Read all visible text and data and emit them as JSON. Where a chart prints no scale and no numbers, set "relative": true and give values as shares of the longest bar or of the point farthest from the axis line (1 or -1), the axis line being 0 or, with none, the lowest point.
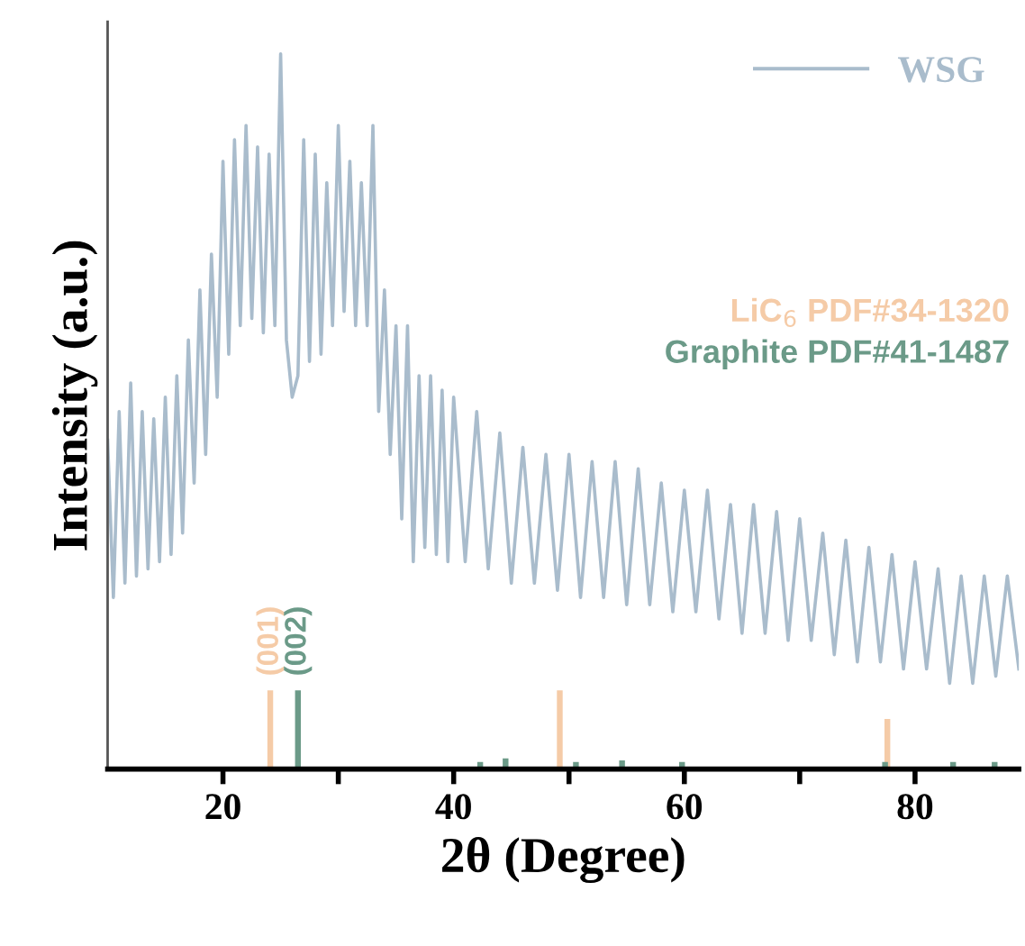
{
  "chart_data": {
    "type": "line",
    "relative": true,
    "xlabel": "2θ (Degree)",
    "ylabel": "Intensity (a.u.)",
    "xlim": [
      10,
      89
    ],
    "xticks": [
      20,
      {
        "value": 30,
        "label": null
      },
      40,
      {
        "value": 50,
        "label": null
      },
      60,
      {
        "value": 70,
        "label": null
      },
      80
    ],
    "tick_labels": "x",
    "legend": "top right",
    "grid": false,
    "series": [
      {
        "name": "WSG",
        "color": "#a9bccc",
        "x": [
          10,
          10.5,
          11,
          11.5,
          12,
          12.5,
          13,
          13.5,
          14,
          14.5,
          15,
          15.5,
          16,
          16.5,
          17,
          17.5,
          18,
          18.5,
          19,
          19.5,
          20,
          20.5,
          21,
          21.5,
          22,
          22.5,
          23,
          23.5,
          24,
          24.5,
          25,
          25.5,
          26,
          26.5,
          27,
          27.5,
          28,
          28.5,
          29,
          29.5,
          30,
          30.5,
          31,
          31.5,
          32,
          32.5,
          33,
          33.5,
          34,
          34.5,
          35,
          35.5,
          36,
          36.5,
          37,
          37.5,
          38,
          38.5,
          39,
          39.5,
          40,
          41,
          42,
          43,
          44,
          45,
          46,
          47,
          48,
          49,
          50,
          51,
          52,
          53,
          54,
          55,
          56,
          57,
          58,
          59,
          60,
          61,
          62,
          63,
          64,
          65,
          66,
          67,
          68,
          69,
          70,
          71,
          72,
          73,
          74,
          75,
          76,
          77,
          78,
          79,
          80,
          81,
          82,
          83,
          84,
          85,
          86,
          87,
          88,
          89
        ],
        "values": [
          0.46,
          0.24,
          0.5,
          0.26,
          0.54,
          0.27,
          0.5,
          0.28,
          0.49,
          0.29,
          0.52,
          0.3,
          0.55,
          0.33,
          0.6,
          0.4,
          0.67,
          0.44,
          0.72,
          0.52,
          0.85,
          0.58,
          0.88,
          0.62,
          0.9,
          0.63,
          0.87,
          0.61,
          0.86,
          0.62,
          1.0,
          0.6,
          0.52,
          0.55,
          0.88,
          0.57,
          0.86,
          0.58,
          0.82,
          0.62,
          0.9,
          0.64,
          0.85,
          0.62,
          0.82,
          0.62,
          0.9,
          0.5,
          0.67,
          0.44,
          0.62,
          0.35,
          0.62,
          0.29,
          0.55,
          0.31,
          0.55,
          0.3,
          0.53,
          0.29,
          0.52,
          0.29,
          0.5,
          0.28,
          0.47,
          0.26,
          0.45,
          0.26,
          0.44,
          0.25,
          0.44,
          0.24,
          0.43,
          0.24,
          0.43,
          0.23,
          0.42,
          0.23,
          0.4,
          0.22,
          0.39,
          0.22,
          0.39,
          0.21,
          0.37,
          0.19,
          0.37,
          0.19,
          0.36,
          0.18,
          0.35,
          0.18,
          0.33,
          0.16,
          0.32,
          0.15,
          0.31,
          0.15,
          0.3,
          0.14,
          0.29,
          0.14,
          0.28,
          0.12,
          0.27,
          0.12,
          0.27,
          0.13,
          0.27,
          0.14
        ]
      },
      {
        "name": "LiC$_{6}$ PDF#34-1320",
        "type": "bar",
        "color": "#f5cba7",
        "x": [
          24.1,
          49.2,
          77.6
        ],
        "values": [
          0.11,
          0.11,
          0.07
        ]
      },
      {
        "name": "Graphite PDF#41-1487",
        "type": "bar",
        "color": "#6b9a88",
        "x": [
          26.5,
          42.3,
          44.5,
          50.6,
          54.6,
          59.8,
          77.4,
          83.3,
          86.9
        ],
        "values": [
          0.11,
          0.01,
          0.015,
          0.01,
          0.012,
          0.01,
          0.01,
          0.01,
          0.01
        ]
      }
    ],
    "annotations": [
      {
        "text": "(001)",
        "x": 24.1,
        "y": 0.11
      },
      {
        "text": "(002)",
        "x": 26.5,
        "y": 0.11
      }
    ]
  }
}
